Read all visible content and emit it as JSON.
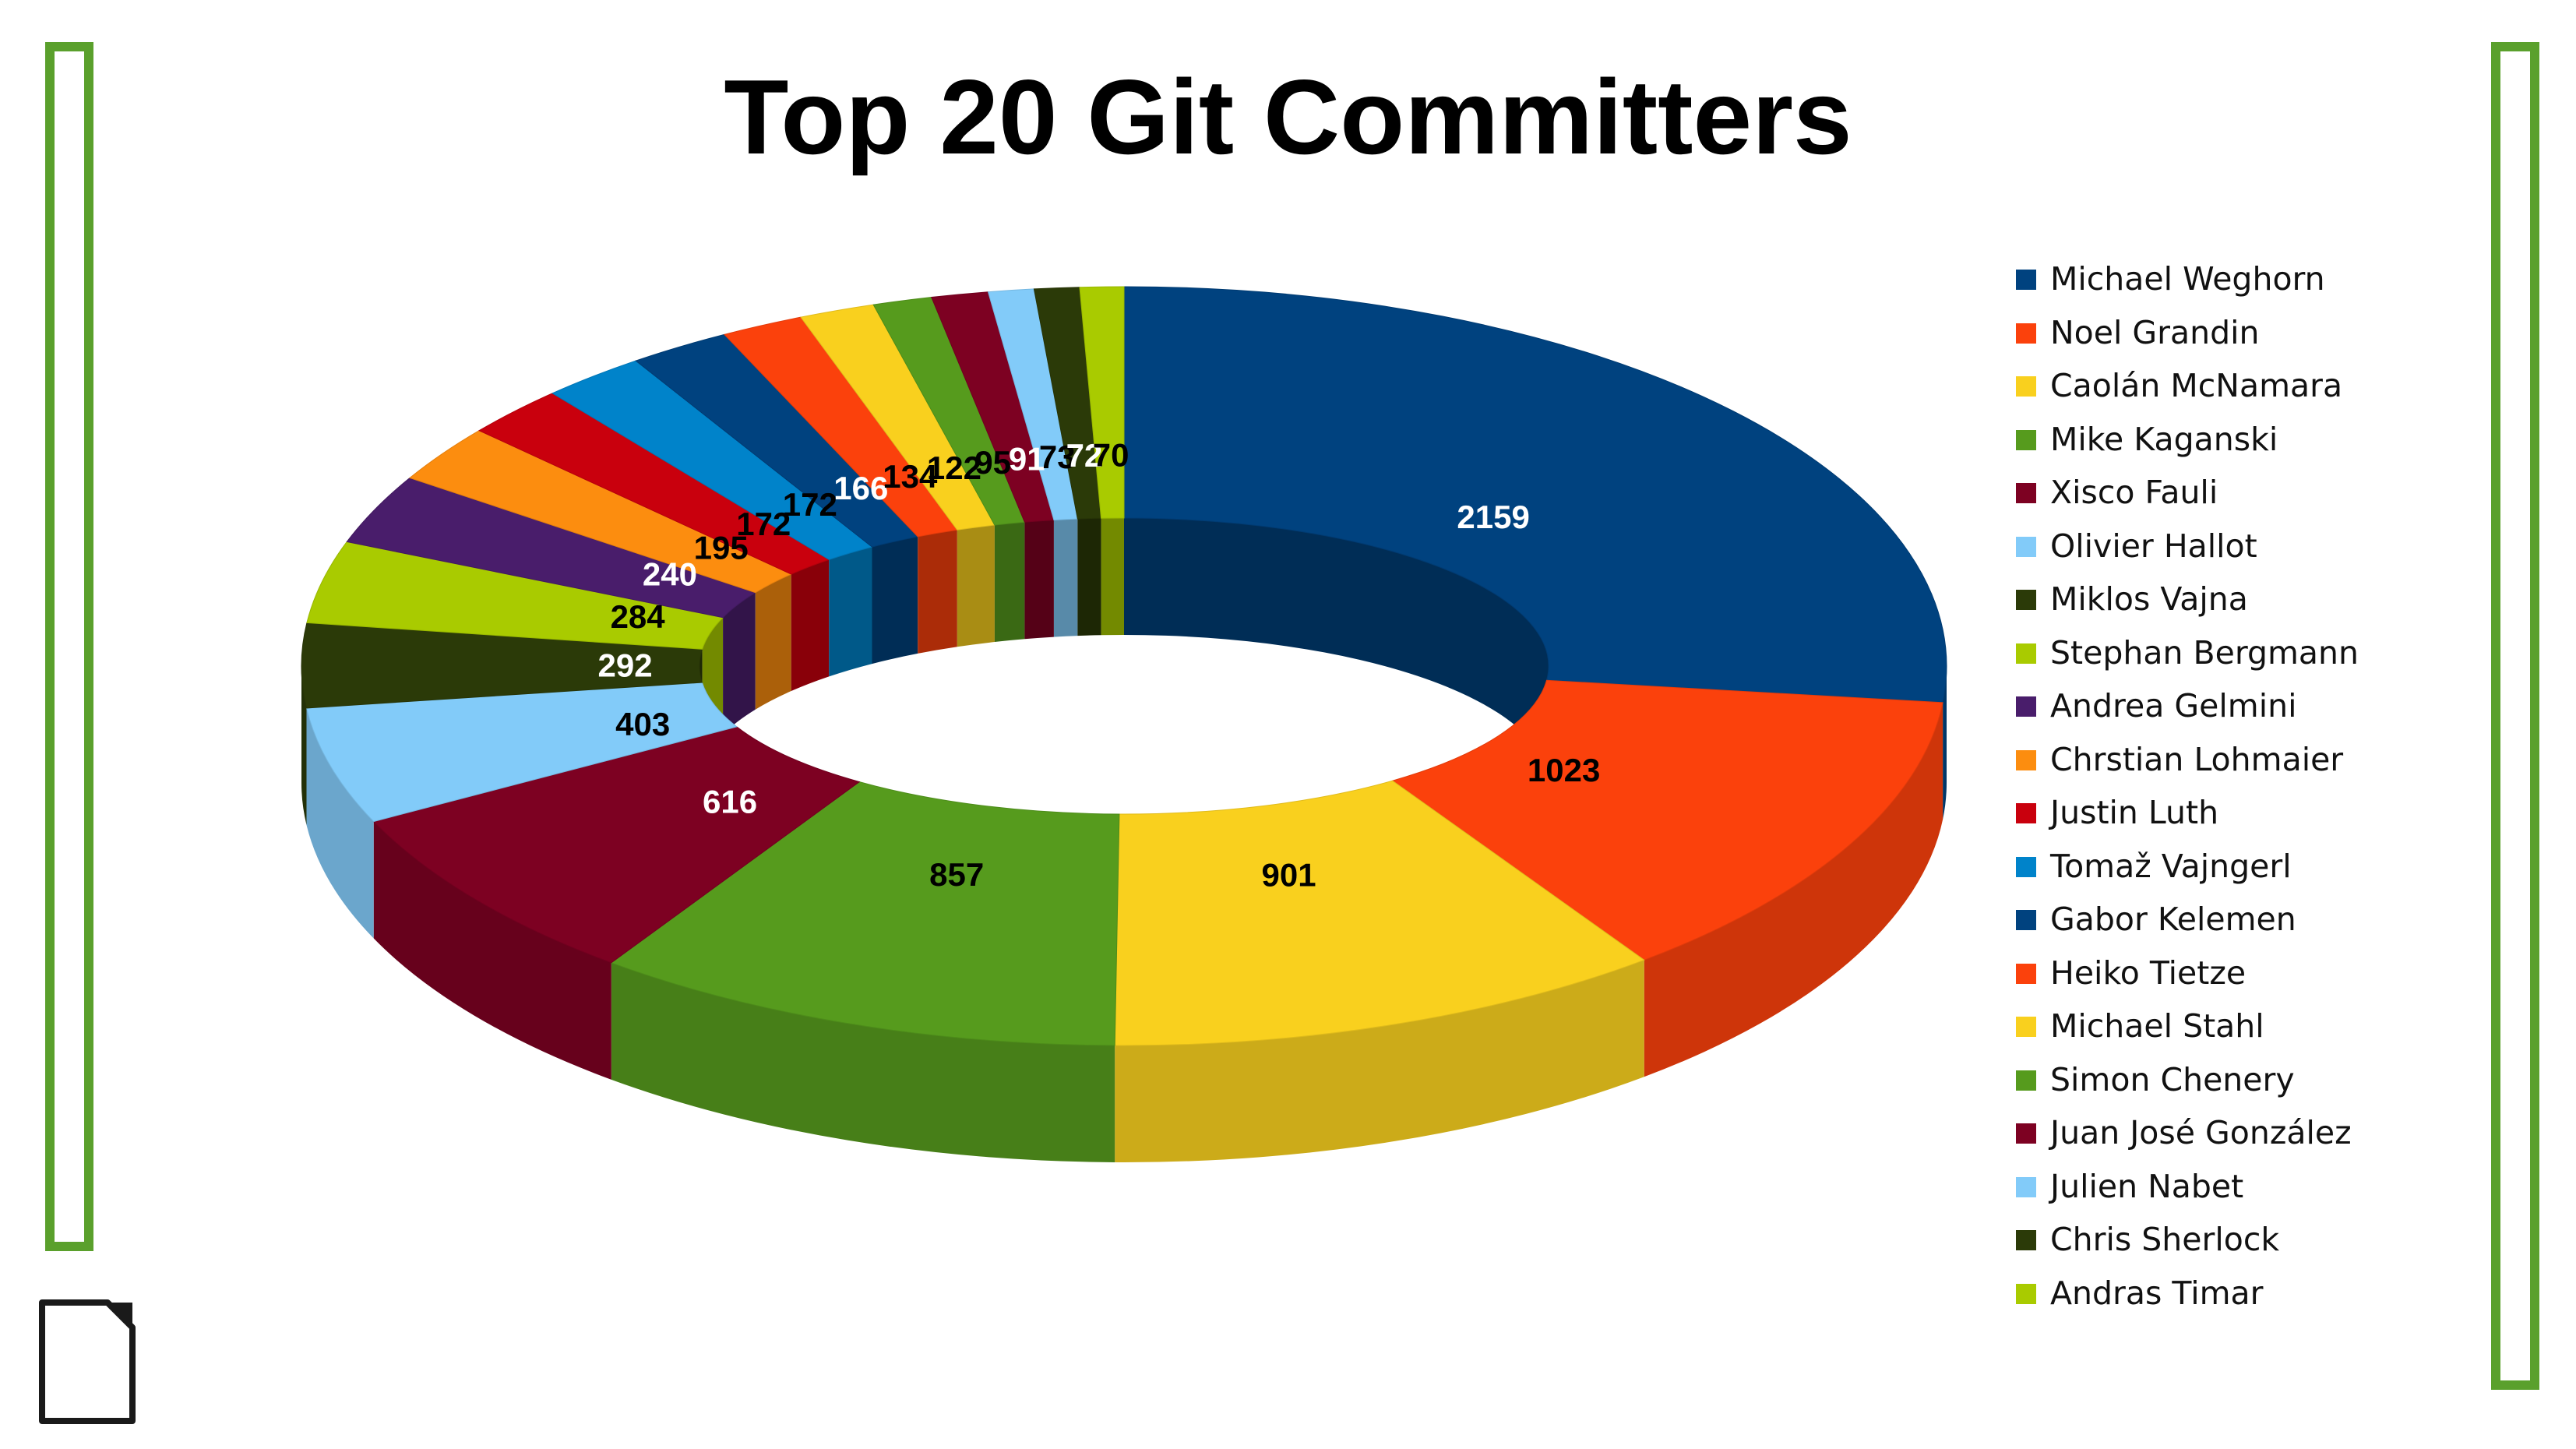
{
  "chart_data": {
    "type": "pie",
    "subtype": "3d-donut",
    "title": "Top 20 Git Committers",
    "legend_position": "right",
    "slices": [
      {
        "name": "Michael Weghorn",
        "value": 2159,
        "color": "#00427f",
        "label_color": "#ffffff"
      },
      {
        "name": "Noel Grandin",
        "value": 1023,
        "color": "#fb410c",
        "label_color": "#000000"
      },
      {
        "name": "Caolán McNamara",
        "value": 901,
        "color": "#f9d01e",
        "label_color": "#000000"
      },
      {
        "name": "Mike Kaganski",
        "value": 857,
        "color": "#569b1d",
        "label_color": "#000000"
      },
      {
        "name": "Xisco Fauli",
        "value": 616,
        "color": "#7d0122",
        "label_color": "#ffffff"
      },
      {
        "name": "Olivier Hallot",
        "value": 403,
        "color": "#82cbf9",
        "label_color": "#000000"
      },
      {
        "name": "Miklos Vajna",
        "value": 292,
        "color": "#2b3a08",
        "label_color": "#ffffff"
      },
      {
        "name": "Stephan Bergmann",
        "value": 284,
        "color": "#a9cb00",
        "label_color": "#000000"
      },
      {
        "name": "Andrea Gelmini",
        "value": 240,
        "color": "#491d6b",
        "label_color": "#ffffff"
      },
      {
        "name": "Chrstian Lohmaier",
        "value": 195,
        "color": "#fc8d0f",
        "label_color": "#000000"
      },
      {
        "name": "Justin Luth",
        "value": 172,
        "color": "#c9000d",
        "label_color": "#000000"
      },
      {
        "name": "Tomaž Vajngerl",
        "value": 172,
        "color": "#0083ca",
        "label_color": "#000000"
      },
      {
        "name": "Gabor Kelemen",
        "value": 166,
        "color": "#00427f",
        "label_color": "#ffffff"
      },
      {
        "name": "Heiko Tietze",
        "value": 134,
        "color": "#fb410c",
        "label_color": "#000000"
      },
      {
        "name": "Michael Stahl",
        "value": 122,
        "color": "#f9d01e",
        "label_color": "#000000"
      },
      {
        "name": "Simon Chenery",
        "value": 95,
        "color": "#569b1d",
        "label_color": "#000000"
      },
      {
        "name": "Juan José González",
        "value": 91,
        "color": "#7d0122",
        "label_color": "#ffffff"
      },
      {
        "name": "Julien Nabet",
        "value": 73,
        "color": "#82cbf9",
        "label_color": "#000000"
      },
      {
        "name": "Chris Sherlock",
        "value": 72,
        "color": "#2b3a08",
        "label_color": "#ffffff"
      },
      {
        "name": "Andras Timar",
        "value": 70,
        "color": "#a9cb00",
        "label_color": "#000000"
      }
    ]
  },
  "colors": {
    "frame_green": "#5aa02c",
    "text": "#000000"
  },
  "icons": {
    "logo": "libreoffice-document-icon"
  }
}
